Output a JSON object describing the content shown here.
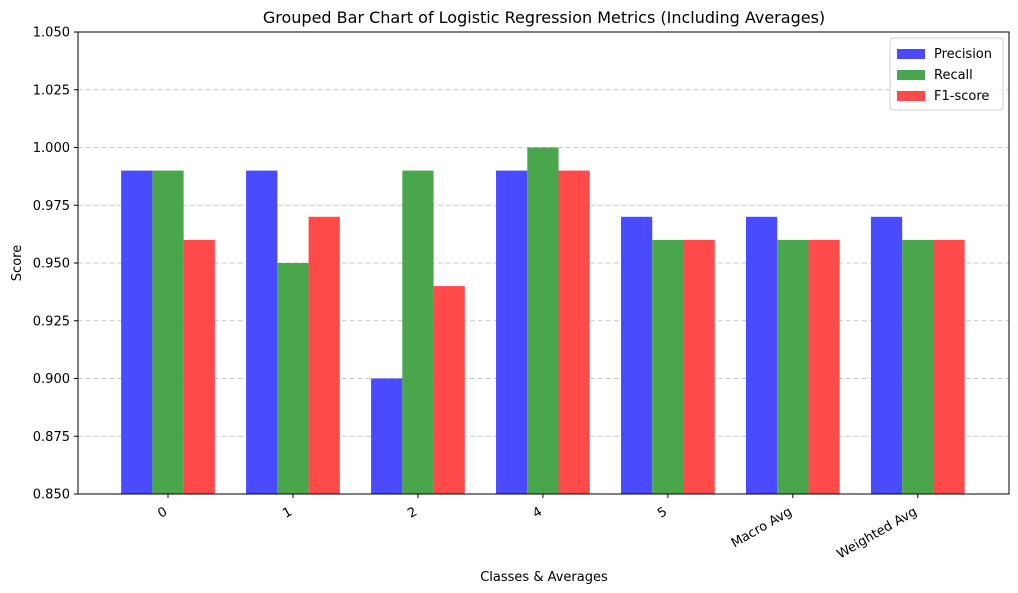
{
  "chart_data": {
    "type": "bar",
    "title": "Grouped Bar Chart of Logistic Regression Metrics (Including Averages)",
    "xlabel": "Classes & Averages",
    "ylabel": "Score",
    "categories": [
      "0",
      "1",
      "2",
      "4",
      "5",
      "Macro Avg",
      "Weighted Avg"
    ],
    "series": [
      {
        "name": "Precision",
        "color": "#4a4aff",
        "values": [
          0.99,
          0.99,
          0.9,
          0.99,
          0.97,
          0.97,
          0.97
        ]
      },
      {
        "name": "Recall",
        "color": "#4aa64a",
        "values": [
          0.99,
          0.95,
          0.99,
          1.0,
          0.96,
          0.96,
          0.96
        ]
      },
      {
        "name": "F1-score",
        "color": "#ff4a4a",
        "values": [
          0.96,
          0.97,
          0.94,
          0.99,
          0.96,
          0.96,
          0.96
        ]
      }
    ],
    "ylim": [
      0.85,
      1.05
    ],
    "yticks": [
      "0.850",
      "0.875",
      "0.900",
      "0.925",
      "0.950",
      "0.975",
      "1.000",
      "1.025",
      "1.050"
    ],
    "grid": "y-dashed",
    "legend_position": "top-right",
    "x_tick_rotation_deg": 30
  }
}
